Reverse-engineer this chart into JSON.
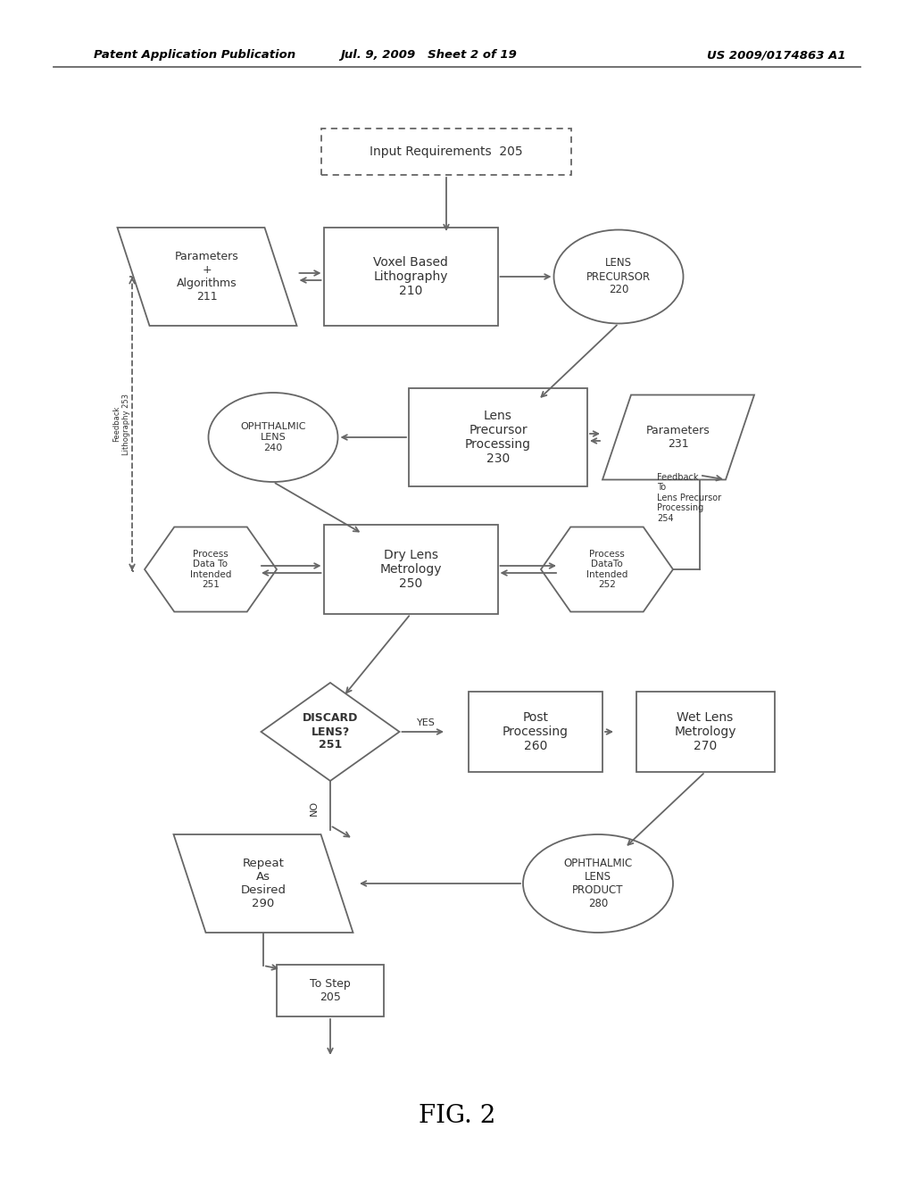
{
  "header_left": "Patent Application Publication",
  "header_mid": "Jul. 9, 2009   Sheet 2 of 19",
  "header_right": "US 2009/0174863 A1",
  "fig_label": "FIG. 2",
  "bg_color": "#ffffff",
  "line_color": "#666666",
  "text_color": "#333333"
}
